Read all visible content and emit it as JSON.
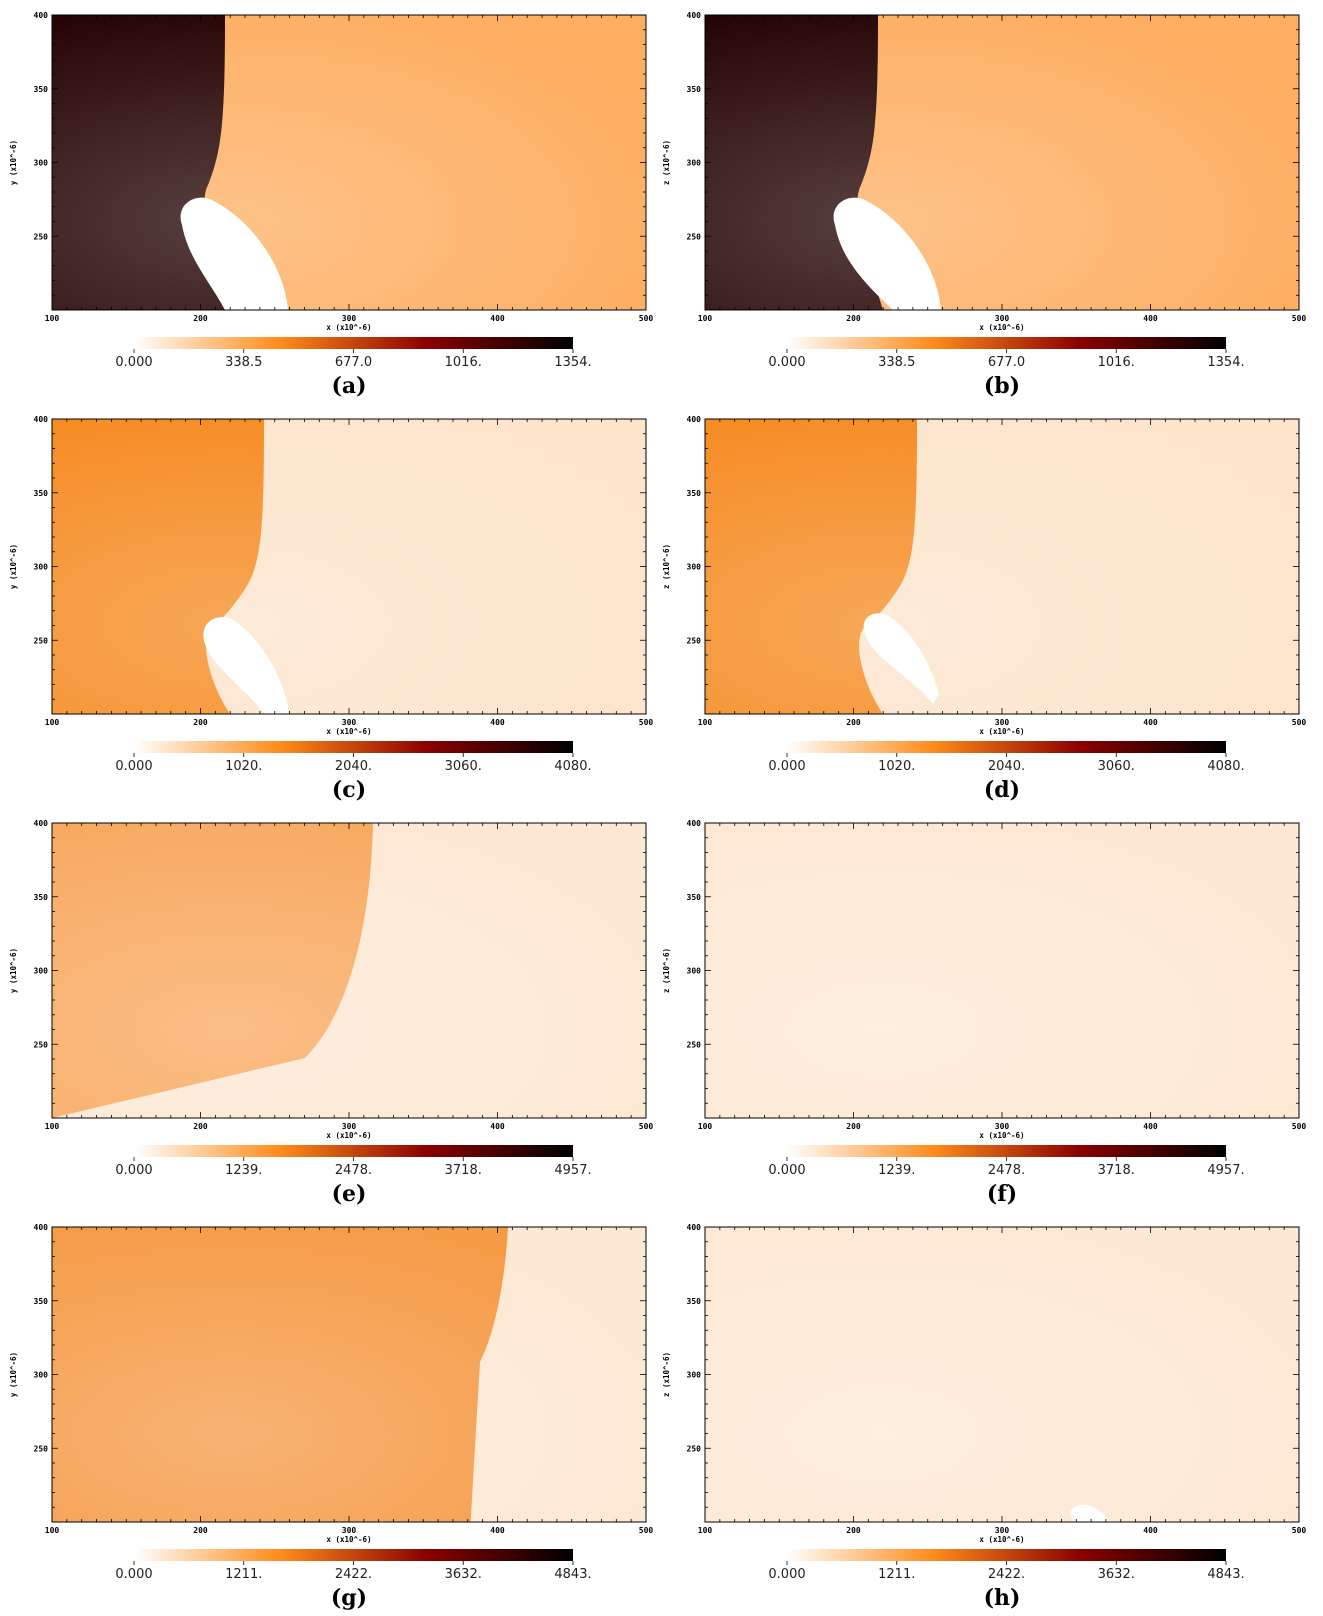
{
  "figure": {
    "panels": [
      {
        "id": "a",
        "caption": "(a)",
        "xlabel": "x  (x10^-6)",
        "ylabel": "y  (x10^-6)",
        "xticks": [
          "100",
          "200",
          "300",
          "400",
          "500"
        ],
        "yticks": [
          "250",
          "300",
          "350",
          "400"
        ],
        "colorbar_ticks": [
          "0.000",
          "338.5",
          "677.0",
          "1016.",
          "1354."
        ]
      },
      {
        "id": "b",
        "caption": "(b)",
        "xlabel": "x  (x10^-6)",
        "ylabel": "z  (x10^-6)",
        "xticks": [
          "100",
          "200",
          "300",
          "400",
          "500"
        ],
        "yticks": [
          "250",
          "300",
          "350",
          "400"
        ],
        "colorbar_ticks": [
          "0.000",
          "338.5",
          "677.0",
          "1016.",
          "1354."
        ]
      },
      {
        "id": "c",
        "caption": "(c)",
        "xlabel": "x  (x10^-6)",
        "ylabel": "y  (x10^-6)",
        "xticks": [
          "100",
          "200",
          "300",
          "400",
          "500"
        ],
        "yticks": [
          "250",
          "300",
          "350",
          "400"
        ],
        "colorbar_ticks": [
          "0.000",
          "1020.",
          "2040.",
          "3060.",
          "4080."
        ]
      },
      {
        "id": "d",
        "caption": "(d)",
        "xlabel": "x  (x10^-6)",
        "ylabel": "z  (x10^-6)",
        "xticks": [
          "100",
          "200",
          "300",
          "400",
          "500"
        ],
        "yticks": [
          "250",
          "300",
          "350",
          "400"
        ],
        "colorbar_ticks": [
          "0.000",
          "1020.",
          "2040.",
          "3060.",
          "4080."
        ]
      },
      {
        "id": "e",
        "caption": "(e)",
        "xlabel": "x  (x10^-6)",
        "ylabel": "y  (x10^-6)",
        "xticks": [
          "100",
          "200",
          "300",
          "400",
          "500"
        ],
        "yticks": [
          "250",
          "300",
          "350",
          "400"
        ],
        "colorbar_ticks": [
          "0.000",
          "1239.",
          "2478.",
          "3718.",
          "4957."
        ]
      },
      {
        "id": "f",
        "caption": "(f)",
        "xlabel": "x  (x10^-6)",
        "ylabel": "z  (x10^-6)",
        "xticks": [
          "100",
          "200",
          "300",
          "400",
          "500"
        ],
        "yticks": [
          "250",
          "300",
          "350",
          "400"
        ],
        "colorbar_ticks": [
          "0.000",
          "1239.",
          "2478.",
          "3718.",
          "4957."
        ]
      },
      {
        "id": "g",
        "caption": "(g)",
        "xlabel": "x  (x10^-6)",
        "ylabel": "y  (x10^-6)",
        "xticks": [
          "100",
          "200",
          "300",
          "400",
          "500"
        ],
        "yticks": [
          "250",
          "300",
          "350",
          "400"
        ],
        "colorbar_ticks": [
          "0.000",
          "1211.",
          "2422.",
          "3632.",
          "4843."
        ]
      },
      {
        "id": "h",
        "caption": "(h)",
        "xlabel": "x  (x10^-6)",
        "ylabel": "z  (x10^-6)",
        "xticks": [
          "100",
          "200",
          "300",
          "400",
          "500"
        ],
        "yticks": [
          "250",
          "300",
          "350",
          "400"
        ],
        "colorbar_ticks": [
          "0.000",
          "1211.",
          "2422.",
          "3632.",
          "4843."
        ]
      }
    ]
  },
  "chart_data": [
    {
      "type": "heatmap",
      "panel": "a",
      "xlim": [
        100,
        500
      ],
      "ylim": [
        200,
        400
      ],
      "colorbar_range": [
        0,
        1354
      ],
      "colormap": [
        "#ffffff",
        "#ff8c1a",
        "#8b0000",
        "#000000"
      ],
      "fields": {
        "ambient": "#fdae61",
        "shocked": "#220000"
      }
    },
    {
      "type": "heatmap",
      "panel": "b",
      "xlim": [
        100,
        500
      ],
      "ylim": [
        200,
        400
      ],
      "colorbar_range": [
        0,
        1354
      ],
      "colormap": [
        "#ffffff",
        "#ff8c1a",
        "#8b0000",
        "#000000"
      ],
      "fields": {
        "ambient": "#fdae61",
        "shocked": "#220000"
      }
    },
    {
      "type": "heatmap",
      "panel": "c",
      "xlim": [
        100,
        500
      ],
      "ylim": [
        200,
        400
      ],
      "colorbar_range": [
        0,
        4080
      ],
      "colormap": [
        "#ffffff",
        "#ff8c1a",
        "#8b0000",
        "#000000"
      ],
      "fields": {
        "ambient": "#fde4cb",
        "shocked": "#f58a20"
      }
    },
    {
      "type": "heatmap",
      "panel": "d",
      "xlim": [
        100,
        500
      ],
      "ylim": [
        200,
        400
      ],
      "colorbar_range": [
        0,
        4080
      ],
      "colormap": [
        "#ffffff",
        "#ff8c1a",
        "#8b0000",
        "#000000"
      ],
      "fields": {
        "ambient": "#fde4cb",
        "shocked": "#f58a20"
      }
    },
    {
      "type": "heatmap",
      "panel": "e",
      "xlim": [
        100,
        500
      ],
      "ylim": [
        200,
        400
      ],
      "colorbar_range": [
        0,
        4957
      ],
      "colormap": [
        "#ffffff",
        "#ff8c1a",
        "#8b0000",
        "#000000"
      ],
      "fields": {
        "ambient": "#fde8d3",
        "shocked": "#f8a85e"
      }
    },
    {
      "type": "heatmap",
      "panel": "f",
      "xlim": [
        100,
        500
      ],
      "ylim": [
        200,
        400
      ],
      "colorbar_range": [
        0,
        4957
      ],
      "colormap": [
        "#ffffff",
        "#ff8c1a",
        "#8b0000",
        "#000000"
      ],
      "fields": {
        "ambient": "#fde8d3",
        "shocked": "#f59a45"
      }
    },
    {
      "type": "heatmap",
      "panel": "g",
      "xlim": [
        100,
        500
      ],
      "ylim": [
        200,
        400
      ],
      "colorbar_range": [
        0,
        4843
      ],
      "colormap": [
        "#ffffff",
        "#ff8c1a",
        "#8b0000",
        "#000000"
      ],
      "fields": {
        "ambient": "#fde8d3",
        "shocked": "#f59a45"
      }
    },
    {
      "type": "heatmap",
      "panel": "h",
      "xlim": [
        100,
        500
      ],
      "ylim": [
        200,
        400
      ],
      "colorbar_range": [
        0,
        4843
      ],
      "colormap": [
        "#ffffff",
        "#ff8c1a",
        "#8b0000",
        "#000000"
      ],
      "fields": {
        "ambient": "#fde8d3",
        "shocked": "#f4902f"
      }
    }
  ]
}
